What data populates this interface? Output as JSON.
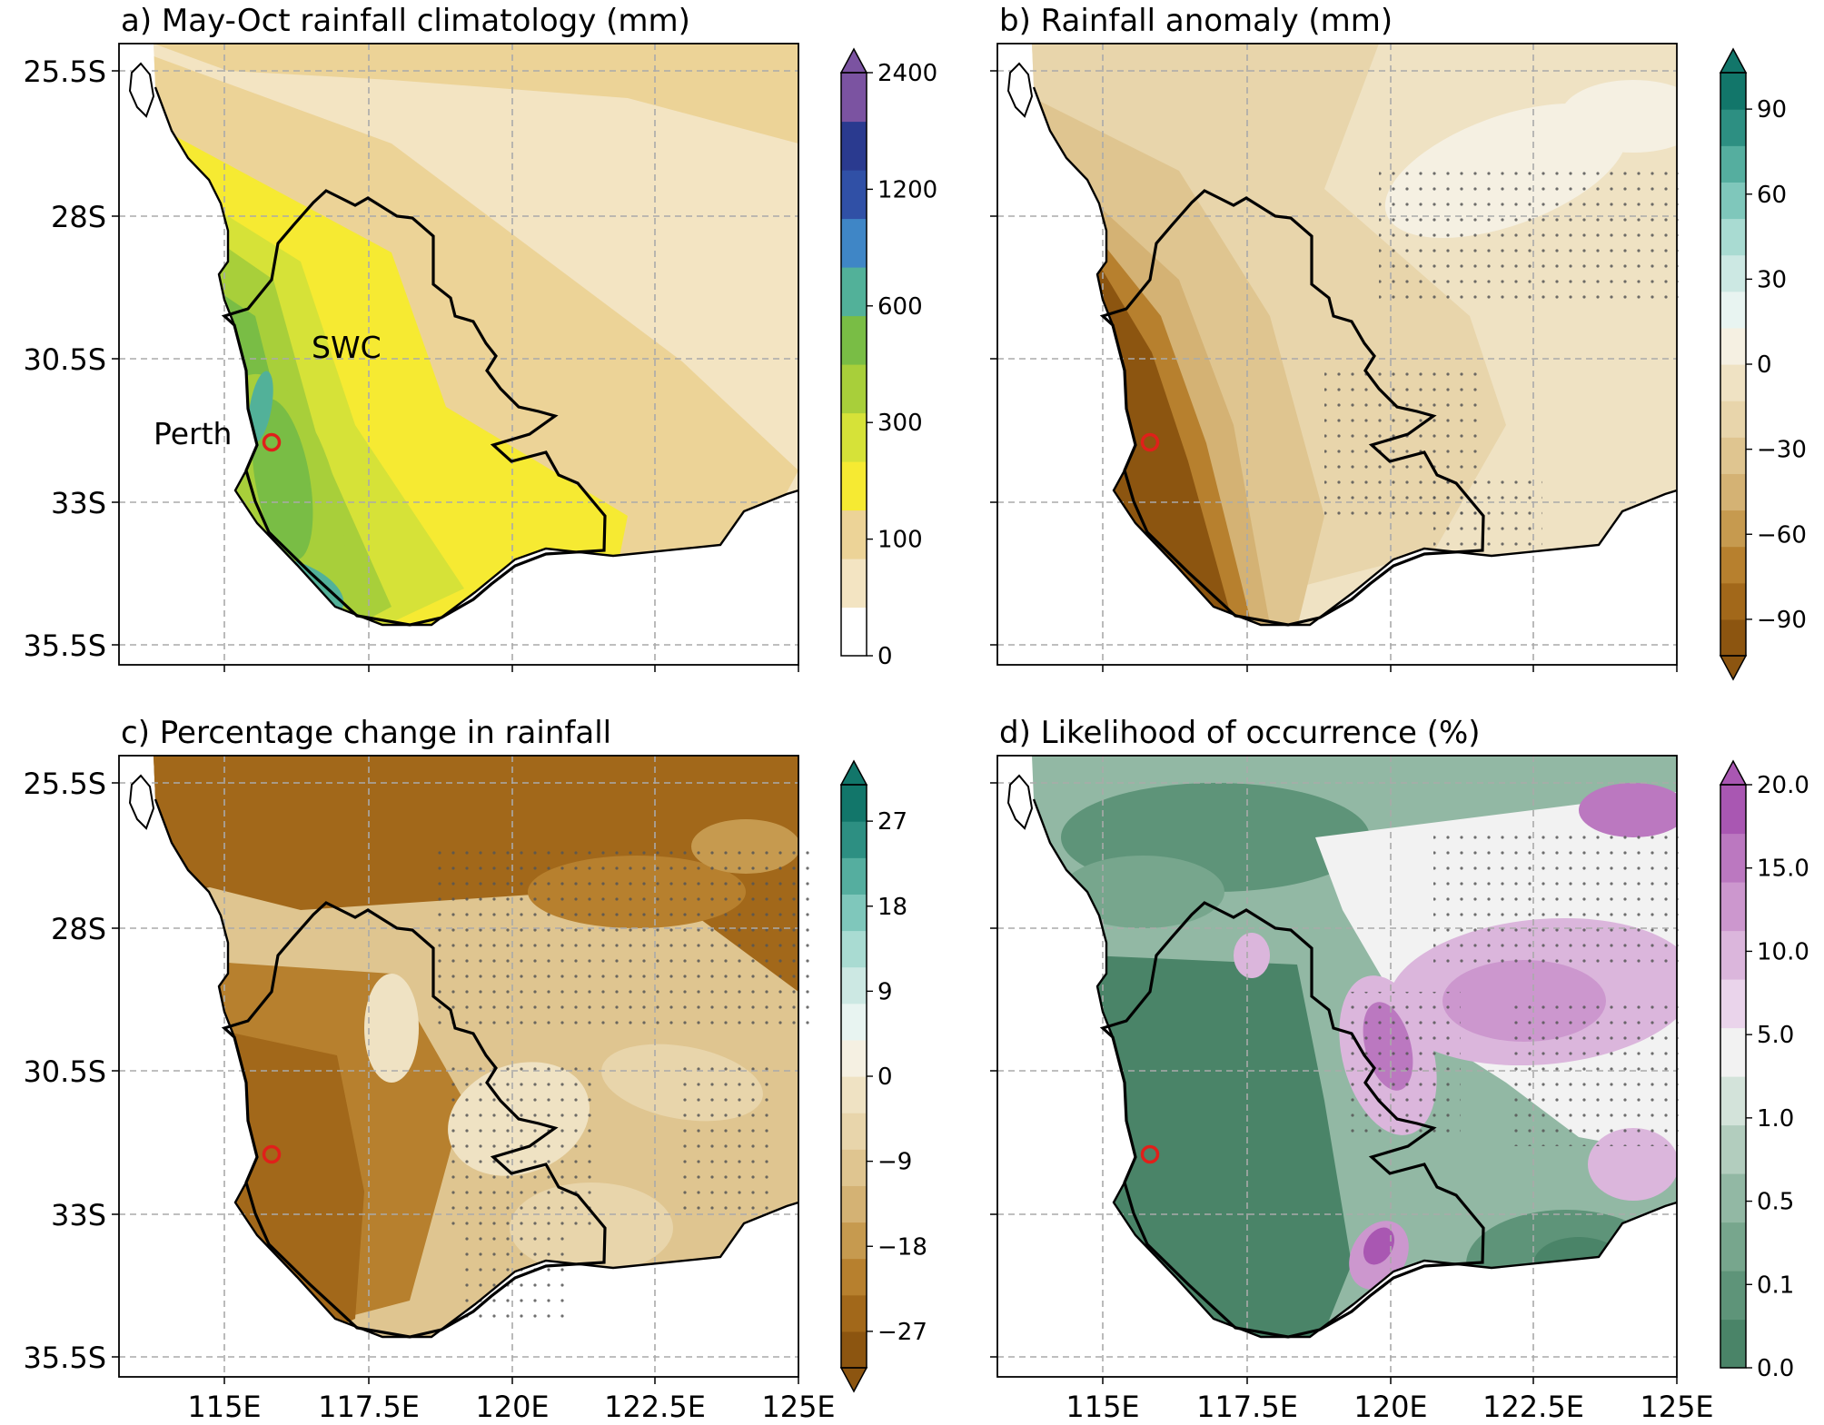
{
  "panels": [
    {
      "title": "a) May-Oct rainfall climatology (mm)",
      "colorbar": {
        "ticks": [
          "2400",
          "1200",
          "600",
          "300",
          "100",
          "0"
        ],
        "colors": [
          "#ffffff",
          "#f3e4c2",
          "#ecd397",
          "#f6ea32",
          "#d6e238",
          "#a8cf3a",
          "#79bd45",
          "#52b199",
          "#3f86c6",
          "#3050a6",
          "#2a3a8f",
          "#7b53a1"
        ],
        "extend": "max"
      }
    },
    {
      "title": "b) Rainfall anomaly (mm)",
      "colorbar": {
        "ticks": [
          "90",
          "60",
          "30",
          "0",
          "−30",
          "−60",
          "−90"
        ],
        "colors": [
          "#8c5510",
          "#a2681a",
          "#b7802e",
          "#c69a4f",
          "#d4b274",
          "#dfc590",
          "#e8d5ab",
          "#efe2c3",
          "#f5f0e2",
          "#e8f4f1",
          "#cce8e3",
          "#a9dbd2",
          "#7fc7bb",
          "#55ae9f",
          "#2d8f82",
          "#12766a"
        ],
        "extend": "both"
      }
    },
    {
      "title": "c) Percentage change in rainfall",
      "colorbar": {
        "ticks": [
          "27",
          "18",
          "9",
          "0",
          "−9",
          "−18",
          "−27"
        ],
        "colors": [
          "#8c5510",
          "#a2681a",
          "#b7802e",
          "#c69a4f",
          "#d4b274",
          "#dfc590",
          "#e8d5ab",
          "#efe2c3",
          "#f5f0e2",
          "#e8f4f1",
          "#cce8e3",
          "#a9dbd2",
          "#7fc7bb",
          "#55ae9f",
          "#2d8f82",
          "#12766a"
        ],
        "extend": "both"
      }
    },
    {
      "title": "d) Likelihood of occurrence (%)",
      "colorbar": {
        "ticks": [
          "20.0",
          "15.0",
          "10.0",
          "5.0",
          "1.0",
          "0.5",
          "0.1",
          "0.0"
        ],
        "colors": [
          "#4a8468",
          "#5e9479",
          "#77a68d",
          "#92b8a4",
          "#b2cdbe",
          "#d3e3da",
          "#f2f2f2",
          "#ead4eb",
          "#dbb6dc",
          "#cc97ce",
          "#bb78c0",
          "#a957b2"
        ],
        "extend": "max"
      }
    }
  ],
  "axes": {
    "lat_labels": [
      "25.5S",
      "28S",
      "30.5S",
      "33S",
      "35.5S"
    ],
    "lon_labels": [
      "115E",
      "117.5E",
      "120E",
      "122.5E",
      "125E"
    ]
  },
  "annotations": {
    "region": "SWC",
    "city": "Perth"
  },
  "colors": {
    "city_marker": "#e0201a",
    "boundary": "#000000",
    "grid": "#aaaaaa"
  }
}
